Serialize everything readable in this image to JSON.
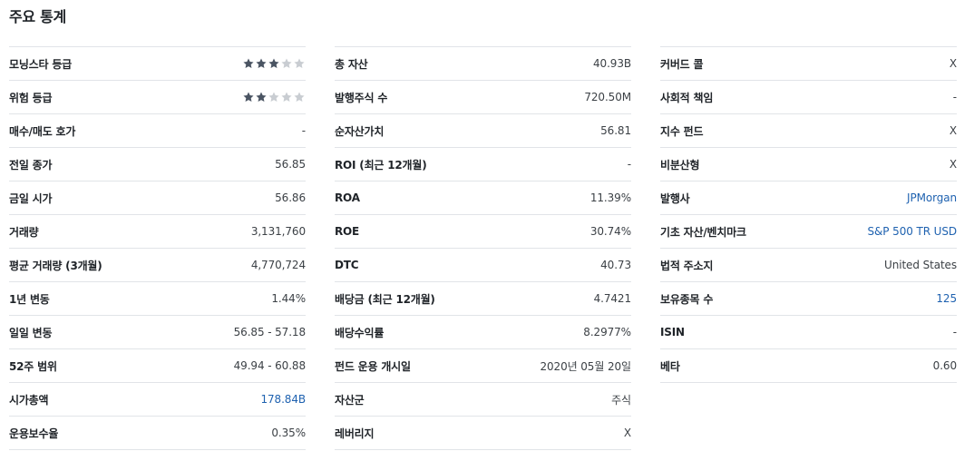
{
  "title": "주요 통계",
  "colors": {
    "star_filled": "#4b5563",
    "star_empty": "#c9cdd2",
    "link": "#1f62b0"
  },
  "columns": [
    {
      "rows": [
        {
          "label": "모닝스타 등급",
          "rating": 3,
          "max_rating": 5
        },
        {
          "label": "위험 등급",
          "rating": 2,
          "max_rating": 5
        },
        {
          "label": "매수/매도 호가",
          "value": "-"
        },
        {
          "label": "전일 종가",
          "value": "56.85"
        },
        {
          "label": "금일 시가",
          "value": "56.86"
        },
        {
          "label": "거래량",
          "value": "3,131,760"
        },
        {
          "label": "평균 거래량 (3개월)",
          "value": "4,770,724"
        },
        {
          "label": "1년 변동",
          "value": "1.44%"
        },
        {
          "label": "일일 변동",
          "value": "56.85 - 57.18"
        },
        {
          "label": "52주 범위",
          "value": "49.94 - 60.88"
        },
        {
          "label": "시가총액",
          "value": "178.84B",
          "link": true
        },
        {
          "label": "운용보수율",
          "value": "0.35%"
        }
      ]
    },
    {
      "rows": [
        {
          "label": "총 자산",
          "value": "40.93B"
        },
        {
          "label": "발행주식 수",
          "value": "720.50M"
        },
        {
          "label": "순자산가치",
          "value": "56.81"
        },
        {
          "label": "ROI (최근 12개월)",
          "value": "-"
        },
        {
          "label": "ROA",
          "value": "11.39%"
        },
        {
          "label": "ROE",
          "value": "30.74%"
        },
        {
          "label": "DTC",
          "value": "40.73"
        },
        {
          "label": "배당금 (최근 12개월)",
          "value": "4.7421"
        },
        {
          "label": "배당수익률",
          "value": "8.2977%"
        },
        {
          "label": "펀드 운용 개시일",
          "value": "2020년 05월 20일"
        },
        {
          "label": "자산군",
          "value": "주식"
        },
        {
          "label": "레버리지",
          "value": "X"
        }
      ]
    },
    {
      "rows": [
        {
          "label": "커버드 콜",
          "value": "X"
        },
        {
          "label": "사회적 책임",
          "value": "-"
        },
        {
          "label": "지수 펀드",
          "value": "X"
        },
        {
          "label": "비분산형",
          "value": "X"
        },
        {
          "label": "발행사",
          "value": "JPMorgan",
          "link": true
        },
        {
          "label": "기초 자산/벤치마크",
          "value": "S&P 500 TR USD",
          "link": true
        },
        {
          "label": "법적 주소지",
          "value": "United States"
        },
        {
          "label": "보유종목 수",
          "value": "125",
          "link": true
        },
        {
          "label": "ISIN",
          "value": "-"
        },
        {
          "label": "베타",
          "value": "0.60"
        }
      ]
    }
  ]
}
